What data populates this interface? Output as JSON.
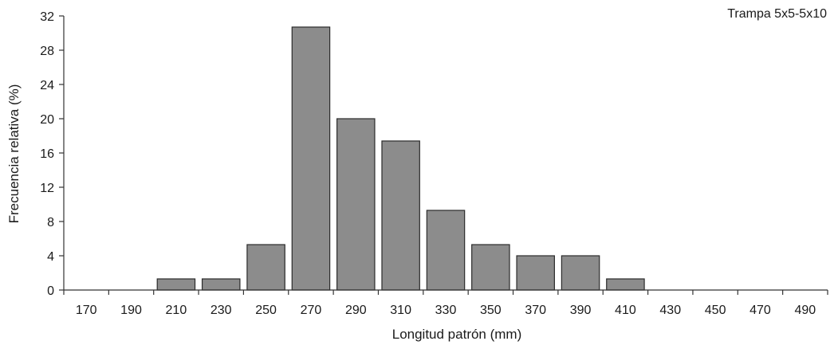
{
  "chart_data": {
    "type": "bar",
    "title": "",
    "annotation": "Trampa 5x5-5x10",
    "xlabel": "Longitud patrón (mm)",
    "ylabel": "Frecuencia relativa (%)",
    "categories": [
      "170",
      "190",
      "210",
      "230",
      "250",
      "270",
      "290",
      "310",
      "330",
      "350",
      "370",
      "390",
      "410",
      "430",
      "450",
      "470",
      "490"
    ],
    "values": [
      0,
      0,
      1.3,
      1.3,
      5.3,
      30.7,
      20.0,
      17.4,
      9.3,
      5.3,
      4.0,
      4.0,
      1.3,
      0,
      0,
      0,
      0
    ],
    "ylim": [
      0,
      32
    ],
    "yticks": [
      0,
      4,
      8,
      12,
      16,
      20,
      24,
      28,
      32
    ],
    "grid": false,
    "legend": "none",
    "colors": {
      "bar_fill": "#8c8c8c",
      "bar_stroke": "#2b2b2b",
      "axis": "#333333"
    }
  }
}
